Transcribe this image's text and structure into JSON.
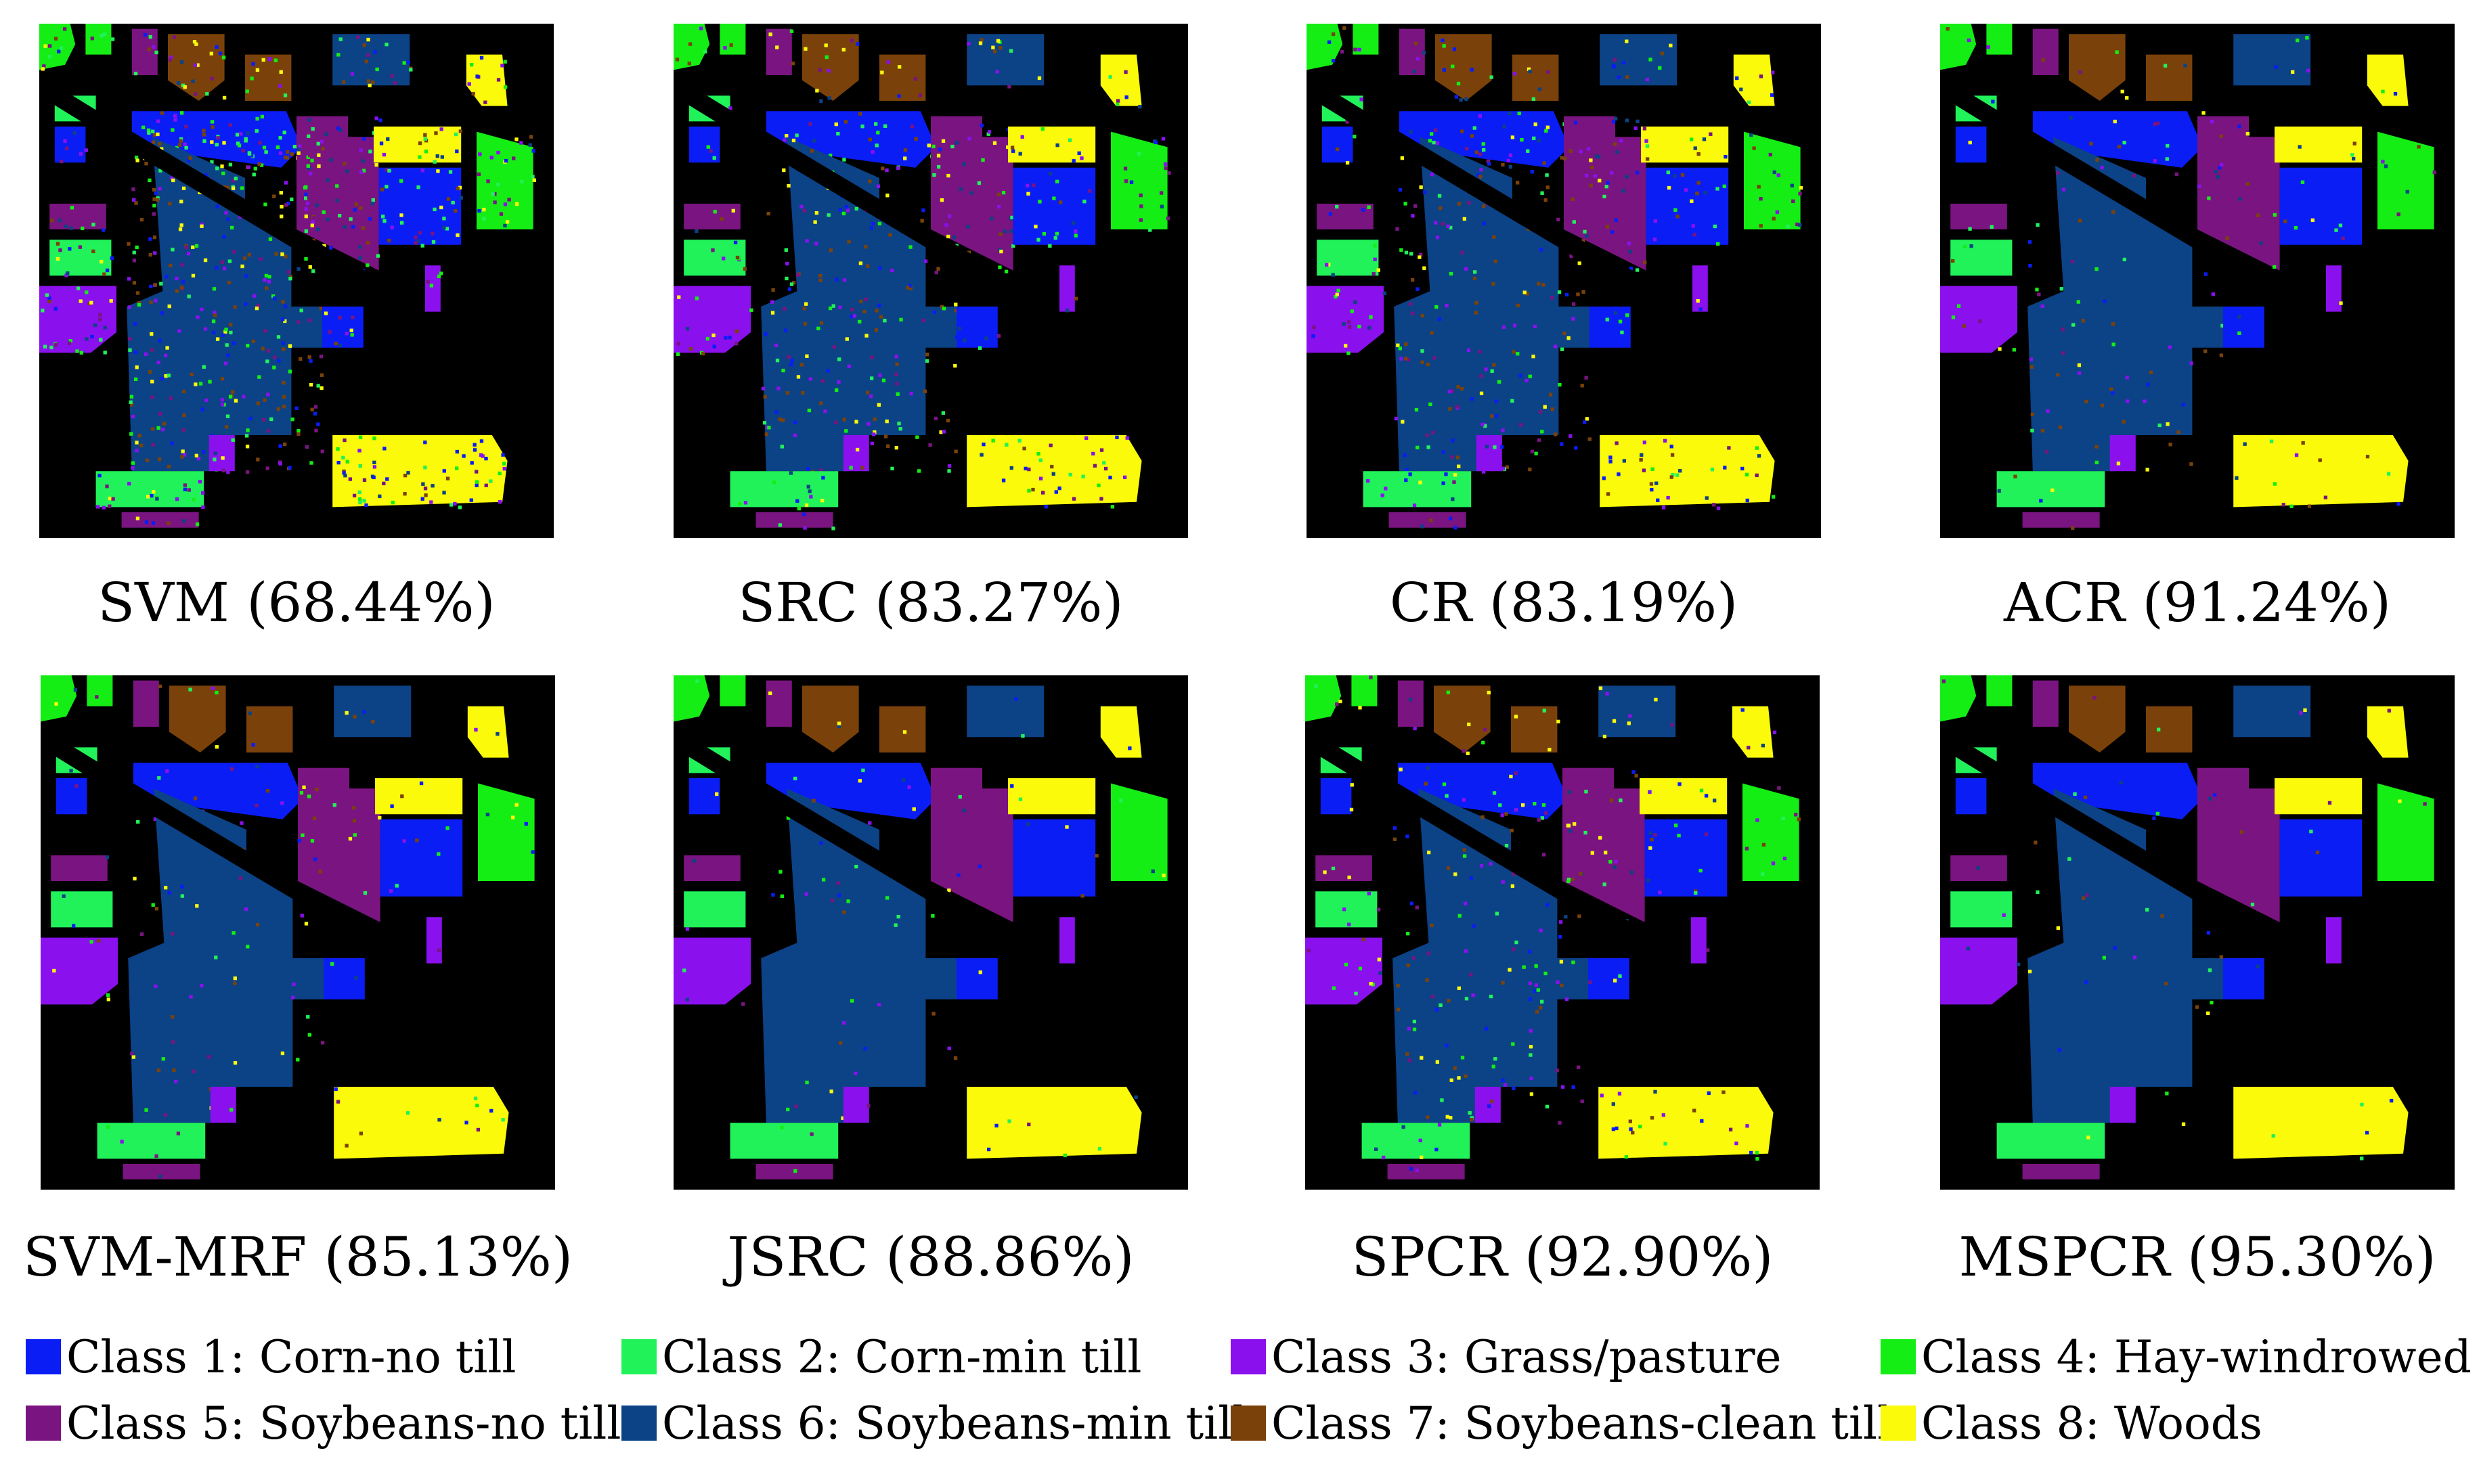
{
  "panels": [
    {
      "caption": "SVM (68.44%)",
      "noise": 0.28
    },
    {
      "caption": "SRC (83.27%)",
      "noise": 0.16
    },
    {
      "caption": "CR (83.19%)",
      "noise": 0.16
    },
    {
      "caption": "ACR (91.24%)",
      "noise": 0.06
    },
    {
      "caption": "SVM-MRF (85.13%)",
      "noise": 0.05
    },
    {
      "caption": "JSRC (88.86%)",
      "noise": 0.03
    },
    {
      "caption": "SPCR (92.90%)",
      "noise": 0.1
    },
    {
      "caption": "MSPCR (95.30%)",
      "noise": 0.02
    }
  ],
  "legend": [
    {
      "label": "Class 1: Corn-no till",
      "color": "#0a1df5"
    },
    {
      "label": "Class 2: Corn-min till",
      "color": "#21f25a"
    },
    {
      "label": "Class 3: Grass/pasture",
      "color": "#8a10ee"
    },
    {
      "label": "Class 4: Hay-windrowed",
      "color": "#14ee14"
    },
    {
      "label": "Class 5: Soybeans-no till",
      "color": "#7a1480"
    },
    {
      "label": "Class 6: Soybeans-min till",
      "color": "#0c4286"
    },
    {
      "label": "Class 7: Soybeans-clean till",
      "color": "#7a420a"
    },
    {
      "label": "Class 8: Woods",
      "color": "#fafa0a"
    }
  ],
  "colors": {
    "background": "#000000"
  }
}
